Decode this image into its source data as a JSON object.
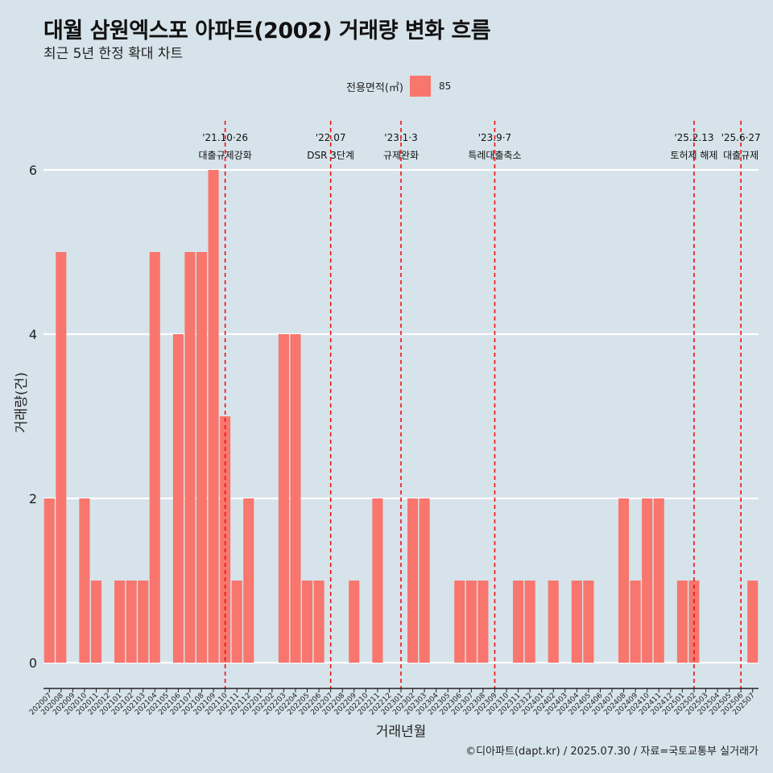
{
  "header": {
    "title": "대월 삼원엑스포 아파트(2002) 거래량 변화 흐름",
    "subtitle": "최근 5년 한정 확대 차트"
  },
  "legend": {
    "title": "전용면적(㎡)",
    "label": "85",
    "color": "#f8766d"
  },
  "caption": "©디아파트(dapt.kr) / 2025.07.30 / 자료=국토교통부 실거래가",
  "chart_data": {
    "type": "bar",
    "xlabel": "거래년월",
    "ylabel": "거래량(건)",
    "ylim": [
      0,
      6
    ],
    "yticks": [
      0,
      2,
      4,
      6
    ],
    "grid": "horizontal",
    "bar_color": "#f8766d",
    "categories": [
      "202007",
      "202008",
      "202009",
      "202010",
      "202011",
      "202012",
      "202101",
      "202102",
      "202103",
      "202104",
      "202105",
      "202106",
      "202107",
      "202108",
      "202109",
      "202110",
      "202111",
      "202112",
      "202201",
      "202202",
      "202203",
      "202204",
      "202205",
      "202206",
      "202207",
      "202208",
      "202209",
      "202210",
      "202211",
      "202212",
      "202301",
      "202302",
      "202303",
      "202304",
      "202305",
      "202306",
      "202307",
      "202308",
      "202309",
      "202310",
      "202311",
      "202312",
      "202401",
      "202402",
      "202403",
      "202404",
      "202405",
      "202406",
      "202407",
      "202408",
      "202409",
      "202410",
      "202411",
      "202412",
      "202501",
      "202502",
      "202503",
      "202504",
      "202505",
      "202506",
      "202507"
    ],
    "values": [
      2,
      5,
      0,
      2,
      1,
      0,
      1,
      1,
      1,
      5,
      0,
      4,
      5,
      5,
      6,
      3,
      1,
      2,
      0,
      0,
      4,
      4,
      1,
      1,
      0,
      0,
      1,
      0,
      2,
      0,
      0,
      2,
      2,
      0,
      0,
      1,
      1,
      1,
      0,
      0,
      1,
      1,
      0,
      1,
      0,
      1,
      1,
      0,
      0,
      2,
      1,
      2,
      2,
      0,
      1,
      1,
      0,
      0,
      0,
      0,
      1
    ],
    "events": [
      {
        "date": "'21.10·26",
        "label": "대출규제강화",
        "month": "202110"
      },
      {
        "date": "'22.07",
        "label": "DSR 3단계",
        "month": "202207"
      },
      {
        "date": "'23.1·3",
        "label": "규제완화",
        "month": "202301"
      },
      {
        "date": "'23.9·7",
        "label": "특례대출축소",
        "month": "202309"
      },
      {
        "date": "'25.2.13",
        "label": "토허제 해제",
        "month": "202502"
      },
      {
        "date": "'25.6·27",
        "label": "대출규제",
        "month": "202506"
      }
    ],
    "event_line_color": "#ee1111"
  }
}
